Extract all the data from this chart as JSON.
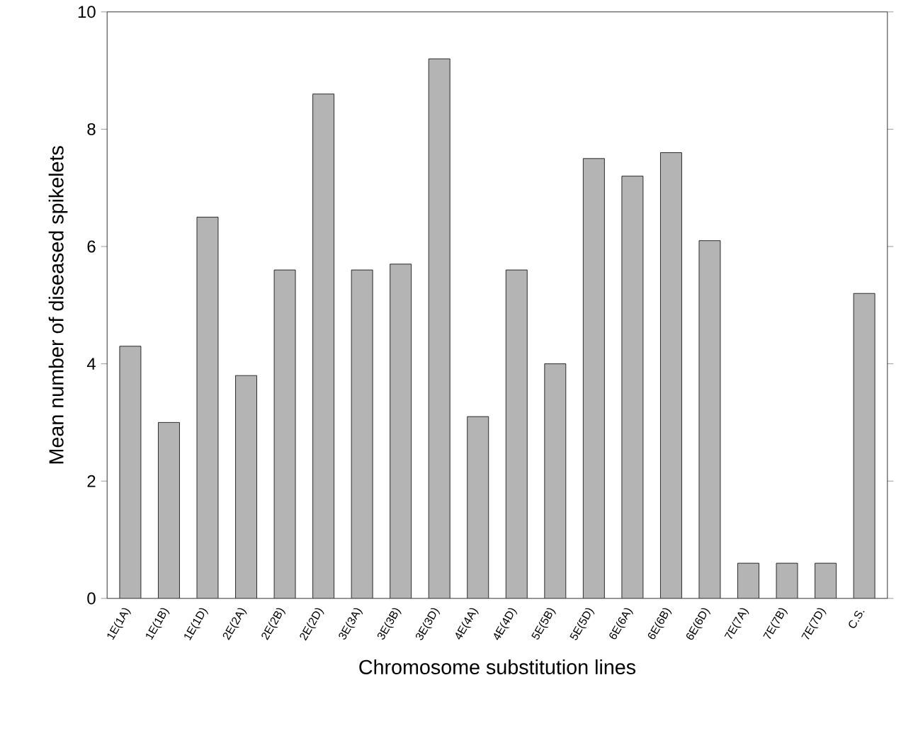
{
  "chart_data": {
    "type": "bar",
    "xlabel": "Chromosome substitution lines",
    "ylabel": "Mean number of diseased spikelets",
    "categories": [
      "1E(1A)",
      "1E(1B)",
      "1E(1D)",
      "2E(2A)",
      "2E(2B)",
      "2E(2D)",
      "3E(3A)",
      "3E(3B)",
      "3E(3D)",
      "4E(4A)",
      "4E(4D)",
      "5E(5B)",
      "5E(5D)",
      "6E(6A)",
      "6E(6B)",
      "6E(6D)",
      "7E(7A)",
      "7E(7B)",
      "7E(7D)",
      "C.S."
    ],
    "values": [
      4.3,
      3.0,
      6.5,
      3.8,
      5.6,
      8.6,
      5.6,
      5.7,
      9.2,
      3.1,
      5.6,
      4.0,
      7.5,
      7.2,
      7.6,
      6.1,
      0.6,
      0.6,
      0.6,
      5.2
    ],
    "color": "#b4b4b4",
    "ylim": [
      0,
      10
    ],
    "yticks": [
      0,
      2,
      4,
      6,
      8,
      10
    ]
  }
}
